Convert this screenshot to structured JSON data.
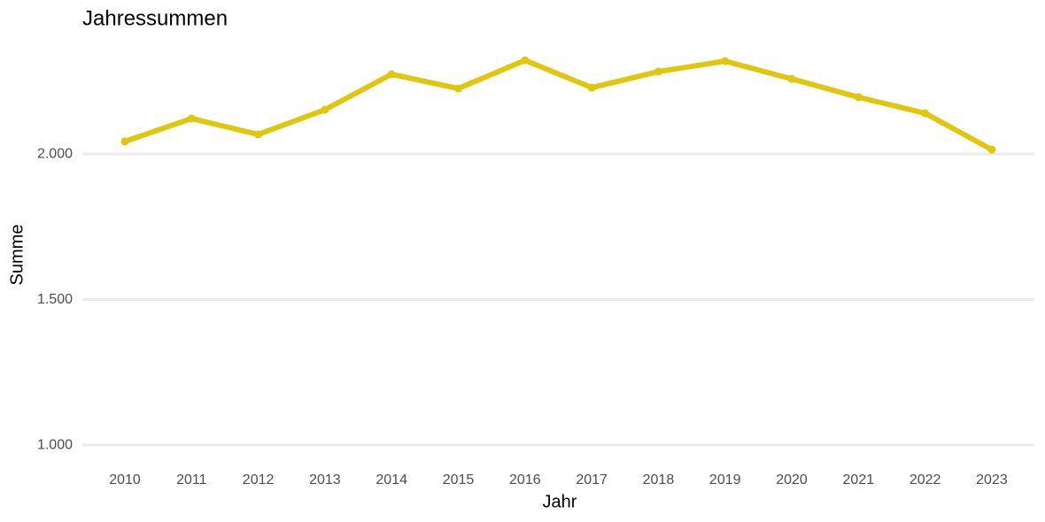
{
  "chart_data": {
    "type": "line",
    "title": "Jahressummen",
    "x_label": "Jahr",
    "y_label": "Summe",
    "categories": [
      "2010",
      "2011",
      "2012",
      "2013",
      "2014",
      "2015",
      "2016",
      "2017",
      "2018",
      "2019",
      "2020",
      "2021",
      "2022",
      "2023"
    ],
    "values": [
      2043,
      2122,
      2067,
      2152,
      2274,
      2225,
      2322,
      2228,
      2283,
      2319,
      2258,
      2195,
      2140,
      2015
    ],
    "color": "#e0c70e",
    "ylim": [
      950,
      2360
    ],
    "yticks": [
      {
        "value": 1000,
        "label": "1.000"
      },
      {
        "value": 1500,
        "label": "1.500"
      },
      {
        "value": 2000,
        "label": "2.000"
      }
    ],
    "grid": true
  }
}
